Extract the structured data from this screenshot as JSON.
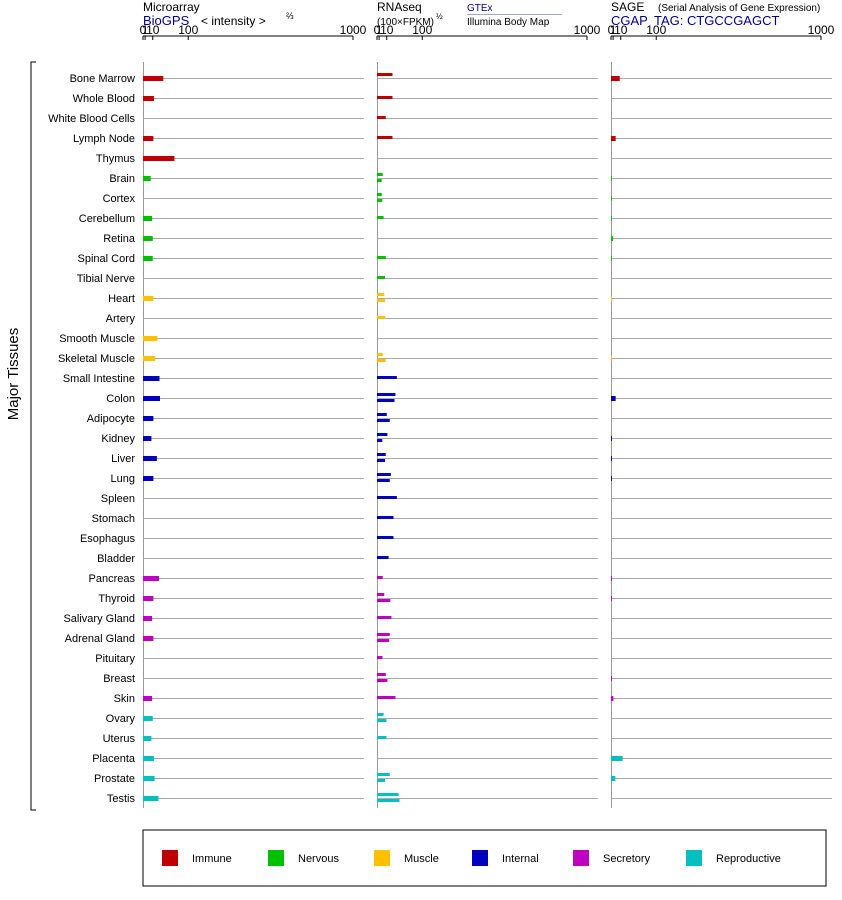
{
  "side_label": "Major Tissues",
  "colors": {
    "Immune": "#c00000",
    "Nervous": "#00c000",
    "Muscle": "#ffc000",
    "Internal": "#0000c0",
    "Secretory": "#c000c0",
    "Reproductive": "#00c0c0"
  },
  "chart_data": {
    "type": "bar",
    "x_scale": "power-2/3",
    "xlim": [
      0,
      1000
    ],
    "ticks": [
      "0",
      "1",
      "10",
      "100",
      "1000"
    ],
    "categories": [
      "Bone Marrow",
      "Whole Blood",
      "White Blood Cells",
      "Lymph Node",
      "Thymus",
      "Brain",
      "Cortex",
      "Cerebellum",
      "Retina",
      "Spinal Cord",
      "Tibial Nerve",
      "Heart",
      "Artery",
      "Smooth Muscle",
      "Skeletal Muscle",
      "Small Intestine",
      "Colon",
      "Adipocyte",
      "Kidney",
      "Liver",
      "Lung",
      "Spleen",
      "Stomach",
      "Esophagus",
      "Bladder",
      "Pancreas",
      "Thyroid",
      "Salivary Gland",
      "Adrenal Gland",
      "Pituitary",
      "Breast",
      "Skin",
      "Ovary",
      "Uterus",
      "Placenta",
      "Prostate",
      "Testis"
    ],
    "groups": [
      "Immune",
      "Immune",
      "Immune",
      "Immune",
      "Immune",
      "Nervous",
      "Nervous",
      "Nervous",
      "Nervous",
      "Nervous",
      "Nervous",
      "Muscle",
      "Muscle",
      "Muscle",
      "Muscle",
      "Internal",
      "Internal",
      "Internal",
      "Internal",
      "Internal",
      "Internal",
      "Internal",
      "Internal",
      "Internal",
      "Internal",
      "Secretory",
      "Secretory",
      "Secretory",
      "Secretory",
      "Secretory",
      "Secretory",
      "Secretory",
      "Reproductive",
      "Reproductive",
      "Reproductive",
      "Reproductive",
      "Reproductive"
    ],
    "panels": [
      {
        "name": "Microarray",
        "sub_link": "BioGPS",
        "sub_text": "< intensity >",
        "sup": "⅔",
        "values": [
          30,
          12,
          null,
          11,
          58,
          7,
          null,
          9,
          10,
          10,
          null,
          11,
          null,
          18,
          14,
          22,
          23,
          11,
          8,
          17,
          11,
          null,
          null,
          null,
          null,
          21,
          11,
          9,
          11,
          null,
          null,
          9,
          10,
          8,
          12,
          13,
          20
        ],
        "values2": []
      },
      {
        "name": "RNAseq",
        "sub_text": "(100×FPKM)",
        "sup": "½",
        "source_a": "GTEx",
        "source_b": "Illumina Body Map",
        "values": [
          20,
          null,
          null,
          null,
          null,
          null,
          null,
          null,
          null,
          null,
          null,
          null,
          null,
          null,
          null,
          null,
          null,
          null,
          null,
          null,
          null,
          null,
          null,
          null,
          null,
          null,
          null,
          null,
          null,
          null,
          null,
          null,
          null,
          null,
          null,
          null,
          null
        ],
        "values2": [
          null,
          20,
          8.5,
          20,
          null,
          4.5,
          3.4,
          5.6,
          null,
          8.5,
          7.5,
          6.4,
          8,
          null,
          4.5,
          29,
          26,
          10,
          11,
          8.5,
          17,
          29,
          22,
          22,
          13,
          4.5,
          6.4,
          18,
          15,
          4.2,
          8.5,
          26,
          5.6,
          9.5,
          null,
          15,
          33
        ],
        "values3": [
          null,
          null,
          null,
          null,
          null,
          3.3,
          4,
          null,
          null,
          null,
          null,
          7.7,
          null,
          null,
          8.5,
          null,
          24,
          15,
          4,
          7.5,
          15,
          null,
          null,
          null,
          null,
          null,
          16,
          null,
          14,
          null,
          11,
          null,
          9.5,
          null,
          null,
          7.5,
          35
        ]
      },
      {
        "name": "SAGE",
        "sub_note": "(Serial Analysis of Gene Expression)",
        "sub_link": "CGAP",
        "sub_text": "TAG: CTGCCGAGCT",
        "values": [
          8.5,
          null,
          null,
          3.3,
          null,
          0.01,
          0.01,
          0.01,
          1,
          0.01,
          null,
          0.005,
          null,
          null,
          0.005,
          null,
          3.3,
          null,
          0.01,
          0.01,
          0.01,
          null,
          null,
          null,
          null,
          0.01,
          0.01,
          null,
          null,
          null,
          0.01,
          1.2,
          null,
          null,
          13,
          3,
          null
        ],
        "values2": []
      }
    ],
    "legend_position": "bottom"
  }
}
